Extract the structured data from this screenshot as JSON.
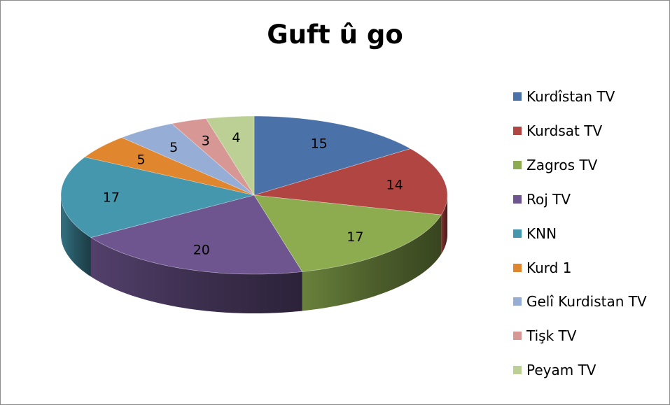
{
  "chart_data": {
    "type": "pie",
    "title": "Guft û go",
    "legend_position": "right",
    "slices": [
      {
        "label": "Kurdîstan TV",
        "value": 15,
        "color": "#4a72a9"
      },
      {
        "label": "Kurdsat TV",
        "value": 14,
        "color": "#b14542"
      },
      {
        "label": "Zagros TV",
        "value": 17,
        "color": "#8cac4f"
      },
      {
        "label": "Roj TV",
        "value": 20,
        "color": "#6e558f"
      },
      {
        "label": "KNN",
        "value": 17,
        "color": "#4597ad"
      },
      {
        "label": "Kurd 1",
        "value": 5,
        "color": "#e0862e"
      },
      {
        "label": "Gelî Kurdistan TV",
        "value": 5,
        "color": "#96aed6"
      },
      {
        "label": "Tişk TV",
        "value": 3,
        "color": "#d79795"
      },
      {
        "label": "Peyam TV",
        "value": 4,
        "color": "#bcd096"
      }
    ]
  }
}
